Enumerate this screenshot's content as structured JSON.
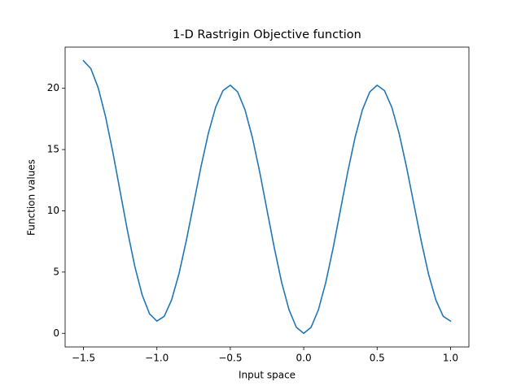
{
  "chart_data": {
    "type": "line",
    "title": "1-D Rastrigin Objective function",
    "x_label": "Input space",
    "y_label": "Function values",
    "x": [
      -1.5,
      -1.45,
      -1.4,
      -1.35,
      -1.3,
      -1.25,
      -1.2,
      -1.15,
      -1.1,
      -1.05,
      -1.0,
      -0.95,
      -0.9,
      -0.85,
      -0.8,
      -0.75,
      -0.7,
      -0.65,
      -0.6,
      -0.55,
      -0.5,
      -0.45,
      -0.4,
      -0.35,
      -0.3,
      -0.25,
      -0.2,
      -0.15,
      -0.1,
      -0.05,
      0.0,
      0.05,
      0.1,
      0.15,
      0.2,
      0.25,
      0.3,
      0.35,
      0.4,
      0.45,
      0.5,
      0.55,
      0.6,
      0.65,
      0.7,
      0.75,
      0.8,
      0.85,
      0.9,
      0.95,
      1.0
    ],
    "series": [
      {
        "color": "#1f77b4",
        "values": [
          22.25,
          21.61,
          20.05,
          17.7,
          14.78,
          11.56,
          8.35,
          5.44,
          3.12,
          1.59,
          1.0,
          1.39,
          2.72,
          4.84,
          7.55,
          10.56,
          13.58,
          16.3,
          18.45,
          19.81,
          20.25,
          19.71,
          18.25,
          16.0,
          13.18,
          10.06,
          6.95,
          4.14,
          1.92,
          0.49,
          0.0,
          0.49,
          1.92,
          4.14,
          6.95,
          10.06,
          13.18,
          16.0,
          18.25,
          19.71,
          20.25,
          19.81,
          18.45,
          16.3,
          13.58,
          10.56,
          7.55,
          4.84,
          2.72,
          1.39,
          1.0
        ]
      }
    ],
    "xlim": [
      -1.625,
      1.125
    ],
    "ylim": [
      -1.11,
      23.36
    ],
    "xticks": [
      {
        "value": -1.5,
        "label": "−1.5"
      },
      {
        "value": -1.0,
        "label": "−1.0"
      },
      {
        "value": -0.5,
        "label": "−0.5"
      },
      {
        "value": 0.0,
        "label": "0.0"
      },
      0.5,
      {
        "value": 1.0,
        "label": "1.0"
      }
    ],
    "yticks": [
      0,
      5,
      10,
      15,
      20
    ],
    "grid": false
  }
}
